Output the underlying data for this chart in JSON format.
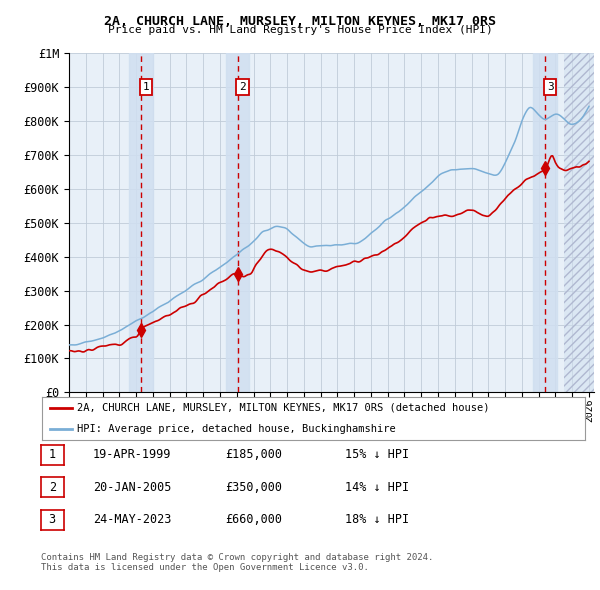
{
  "title1": "2A, CHURCH LANE, MURSLEY, MILTON KEYNES, MK17 0RS",
  "title2": "Price paid vs. HM Land Registry's House Price Index (HPI)",
  "ylim": [
    0,
    1000000
  ],
  "yticks": [
    0,
    100000,
    200000,
    300000,
    400000,
    500000,
    600000,
    700000,
    800000,
    900000,
    1000000
  ],
  "ytick_labels": [
    "£0",
    "£100K",
    "£200K",
    "£300K",
    "£400K",
    "£500K",
    "£600K",
    "£700K",
    "£800K",
    "£900K",
    "£1M"
  ],
  "x_start_year": 1995,
  "x_end_year": 2026,
  "hpi_color": "#7aaed6",
  "price_color": "#cc0000",
  "bg_color": "#e8f0f8",
  "grid_color": "#c0ccd8",
  "sale1_t": 1999.29,
  "sale1_p": 185000,
  "sale2_t": 2005.05,
  "sale2_p": 350000,
  "sale3_t": 2023.39,
  "sale3_p": 660000,
  "legend_line1": "2A, CHURCH LANE, MURSLEY, MILTON KEYNES, MK17 0RS (detached house)",
  "legend_line2": "HPI: Average price, detached house, Buckinghamshire",
  "footer1": "Contains HM Land Registry data © Crown copyright and database right 2024.",
  "footer2": "This data is licensed under the Open Government Licence v3.0.",
  "table_rows": [
    {
      "num": "1",
      "date": "19-APR-1999",
      "price": "£185,000",
      "pct": "15% ↓ HPI"
    },
    {
      "num": "2",
      "date": "20-JAN-2005",
      "price": "£350,000",
      "pct": "14% ↓ HPI"
    },
    {
      "num": "3",
      "date": "24-MAY-2023",
      "price": "£660,000",
      "pct": "18% ↓ HPI"
    }
  ],
  "vline_color": "#cc0000",
  "shade_color": "#d0dff0",
  "hatch_color": "#b0b8d0"
}
